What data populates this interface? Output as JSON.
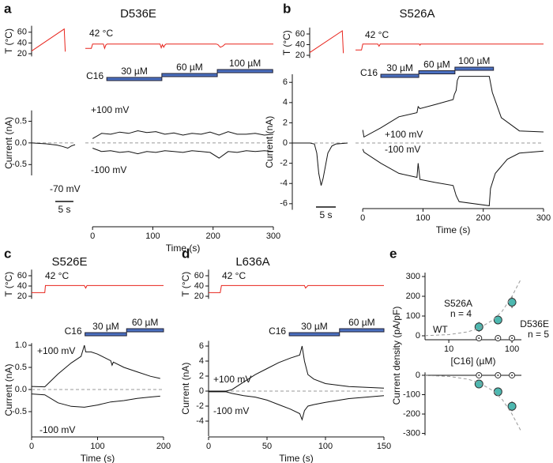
{
  "chart_data": [
    {
      "type": "line",
      "panel": "a",
      "ylabel": "T (°C)",
      "xlim": [
        0,
        20
      ],
      "ylim": [
        15,
        72
      ],
      "yticks": [
        20,
        40,
        60
      ],
      "series": [
        {
          "color": "#e8241c",
          "x": [
            0,
            15,
            15.5
          ],
          "values": [
            25,
            66,
            24
          ]
        }
      ]
    },
    {
      "type": "line",
      "title": "D536E",
      "annotations": [
        "42 °C"
      ],
      "xlim": [
        -12,
        300
      ],
      "ylim": [
        15,
        72
      ],
      "series": [
        {
          "color": "#e8241c",
          "x": [
            -12,
            -2,
            0,
            18,
            20,
            22,
            24,
            112,
            114,
            116,
            118,
            120,
            122,
            205,
            208,
            212,
            216,
            220,
            300
          ],
          "values": [
            30,
            30,
            38,
            38,
            30,
            36,
            38,
            38,
            31,
            37,
            32,
            36,
            38,
            38,
            37,
            32,
            34,
            38,
            38
          ]
        }
      ],
      "dose": {
        "label": "C16",
        "color": "#4a6fc0",
        "steps": [
          {
            "label": "30 µM",
            "x": [
              23.6,
              115
            ]
          },
          {
            "label": "60 µM",
            "x": [
              115,
              207
            ]
          },
          {
            "label": "100 µM",
            "x": [
              207,
              299
            ]
          }
        ]
      }
    },
    {
      "type": "line",
      "ylabel": "Current (nA)",
      "xlim": [
        0,
        12
      ],
      "ylim": [
        -0.75,
        0.75
      ],
      "yticks": [
        0.5,
        {
          "value": 0,
          "label": "0.0"
        },
        -0.5
      ],
      "zero_line": true,
      "annotations": [
        "-70 mV"
      ],
      "scalebar": {
        "label": "5 s",
        "value": 5
      },
      "series": [
        {
          "color": "#111",
          "x": [
            0,
            4,
            7,
            8.5,
            10,
            11,
            12
          ],
          "values": [
            0,
            -0.02,
            -0.05,
            -0.08,
            -0.12,
            -0.07,
            -0.04
          ]
        }
      ]
    },
    {
      "type": "line",
      "xlim": [
        -12,
        300
      ],
      "ylim": [
        -0.75,
        0.75
      ],
      "xticks": [
        0,
        100,
        200,
        300
      ],
      "xlabel": "Time (s)",
      "zero_line": true,
      "series": [
        {
          "name": "+100 mV",
          "color": "#111",
          "x": [
            0,
            15,
            30,
            45,
            60,
            75,
            90,
            105,
            120,
            135,
            150,
            165,
            180,
            195,
            210,
            225,
            240,
            255,
            270,
            285,
            300
          ],
          "values": [
            0.1,
            0.22,
            0.2,
            0.25,
            0.22,
            0.28,
            0.24,
            0.26,
            0.2,
            0.23,
            0.18,
            0.22,
            0.2,
            0.25,
            0.18,
            0.26,
            0.2,
            0.2,
            0.22,
            0.18,
            0.2
          ]
        },
        {
          "name": "-100 mV",
          "color": "#111",
          "x": [
            0,
            15,
            30,
            45,
            60,
            75,
            90,
            105,
            120,
            135,
            150,
            165,
            180,
            195,
            210,
            225,
            240,
            255,
            270,
            285,
            300
          ],
          "values": [
            -0.12,
            -0.2,
            -0.18,
            -0.22,
            -0.2,
            -0.25,
            -0.2,
            -0.22,
            -0.18,
            -0.2,
            -0.22,
            -0.18,
            -0.2,
            -0.22,
            -0.35,
            -0.2,
            -0.22,
            -0.18,
            -0.2,
            -0.18,
            -0.2
          ]
        }
      ]
    },
    {
      "type": "line",
      "panel": "b",
      "ylabel": "T (°C)",
      "xlim": [
        0,
        20
      ],
      "ylim": [
        15,
        72
      ],
      "yticks": [
        20,
        40,
        60
      ],
      "series": [
        {
          "color": "#e8241c",
          "x": [
            0,
            15,
            15.5
          ],
          "values": [
            25,
            66,
            24
          ]
        }
      ]
    },
    {
      "type": "line",
      "title": "S526A",
      "annotations": [
        "42 °C"
      ],
      "xlim": [
        -12,
        300
      ],
      "ylim": [
        15,
        72
      ],
      "series": [
        {
          "color": "#e8241c",
          "x": [
            -12,
            -2,
            0,
            25,
            27,
            29,
            94,
            95,
            96,
            300
          ],
          "values": [
            30,
            30,
            41,
            41,
            37,
            41,
            41,
            39,
            41,
            41
          ]
        }
      ],
      "dose": {
        "label": "C16",
        "color": "#4a6fc0",
        "steps": [
          {
            "label": "30 µM",
            "x": [
              30,
              93
            ]
          },
          {
            "label": "60 µM",
            "x": [
              93,
              153
            ]
          },
          {
            "label": "100 µM",
            "x": [
              153,
              217
            ]
          }
        ]
      }
    },
    {
      "type": "line",
      "ylabel": "Current (nA)",
      "xlim": [
        0,
        14
      ],
      "ylim": [
        -6.6,
        6.8
      ],
      "yticks": [
        6,
        4,
        2,
        0,
        -2,
        -4,
        -6
      ],
      "zero_line": true,
      "scalebar": {
        "label": "5 s",
        "value": 5
      },
      "series": [
        {
          "color": "#111",
          "x": [
            0,
            4.5,
            5.6,
            6.2,
            6.7,
            7.3,
            7.8,
            9,
            10,
            11,
            14
          ],
          "values": [
            0,
            0,
            -0.1,
            -1,
            -3,
            -4.2,
            -3.5,
            -1,
            -0.3,
            -0.1,
            0
          ]
        }
      ]
    },
    {
      "type": "line",
      "xlim": [
        -12,
        300
      ],
      "ylim": [
        -6.6,
        6.8
      ],
      "xticks": [
        0,
        100,
        200,
        300
      ],
      "xlabel": "Time (s)",
      "zero_line": true,
      "series": [
        {
          "name": "+100 mV",
          "color": "#111",
          "x": [
            0,
            2,
            30,
            60,
            90,
            92,
            95,
            120,
            150,
            152,
            155,
            157,
            160,
            210,
            215,
            230,
            260,
            300
          ],
          "values": [
            1.3,
            0.6,
            1.5,
            2.6,
            3,
            3.6,
            3.4,
            3.8,
            4.3,
            4.8,
            5.2,
            6.2,
            6.6,
            6.6,
            5,
            2.5,
            1.2,
            1.1
          ]
        },
        {
          "name": "-100 mV",
          "color": "#111",
          "x": [
            0,
            2,
            30,
            60,
            90,
            92,
            95,
            120,
            150,
            155,
            160,
            210,
            212,
            220,
            240,
            260,
            300
          ],
          "values": [
            -0.6,
            -0.9,
            -2,
            -3,
            -3.4,
            -2,
            -3.6,
            -3.9,
            -4.2,
            -5.2,
            -5.8,
            -6.2,
            -4.5,
            -3,
            -1.6,
            -1,
            -0.8
          ]
        }
      ]
    },
    {
      "type": "line",
      "panel": "c",
      "title": "S526E",
      "ylabel": "T (°C)",
      "annotations": [
        "42 °C"
      ],
      "xlim": [
        0,
        200
      ],
      "ylim": [
        15,
        72
      ],
      "yticks": [
        20,
        40,
        60
      ],
      "series": [
        {
          "color": "#e8241c",
          "x": [
            0,
            20,
            21,
            80,
            82,
            84,
            200
          ],
          "values": [
            27,
            27,
            41,
            41,
            36,
            41,
            41
          ]
        }
      ],
      "dose": {
        "label": "C16",
        "color": "#4a6fc0",
        "steps": [
          {
            "label": "30 µM",
            "x": [
              81,
              144
            ]
          },
          {
            "label": "60 µM",
            "x": [
              144,
              200
            ]
          }
        ]
      }
    },
    {
      "type": "line",
      "ylabel": "Current (nA)",
      "xlim": [
        0,
        200
      ],
      "ylim": [
        -1.07,
        1.05
      ],
      "yticks": [
        {
          "value": 1,
          "label": "1.0"
        },
        0.5,
        {
          "value": 0,
          "label": "0.0"
        },
        -0.5
      ],
      "xticks": [
        0,
        100,
        200
      ],
      "xlabel": "Time (s)",
      "zero_line": true,
      "series": [
        {
          "name": "+100 mV",
          "color": "#111",
          "x": [
            0,
            20,
            40,
            60,
            75,
            80,
            82,
            90,
            100,
            120,
            122,
            124,
            140,
            160,
            180,
            195
          ],
          "values": [
            0.07,
            0.06,
            0.35,
            0.6,
            0.75,
            1.0,
            0.85,
            0.85,
            0.8,
            0.65,
            0.55,
            0.62,
            0.5,
            0.4,
            0.3,
            0.25
          ]
        },
        {
          "name": "-100 mV",
          "color": "#111",
          "x": [
            0,
            20,
            40,
            60,
            80,
            100,
            120,
            140,
            160,
            180,
            195
          ],
          "values": [
            -0.1,
            -0.12,
            -0.3,
            -0.38,
            -0.4,
            -0.35,
            -0.28,
            -0.25,
            -0.2,
            -0.17,
            -0.15
          ]
        }
      ]
    },
    {
      "type": "line",
      "panel": "d",
      "title": "L636A",
      "ylabel": "T (°C)",
      "annotations": [
        "42 °C"
      ],
      "xlim": [
        0,
        150
      ],
      "ylim": [
        15,
        72
      ],
      "yticks": [
        20,
        40,
        60
      ],
      "series": [
        {
          "color": "#e8241c",
          "x": [
            0,
            10,
            11,
            82,
            83,
            85,
            150
          ],
          "values": [
            27,
            27,
            41,
            41,
            36,
            41,
            41
          ]
        }
      ],
      "dose": {
        "label": "C16",
        "color": "#4a6fc0",
        "steps": [
          {
            "label": "30 µM",
            "x": [
              69,
              112
            ]
          },
          {
            "label": "60 µM",
            "x": [
              112,
              150
            ]
          }
        ]
      }
    },
    {
      "type": "line",
      "ylabel": "Current (nA)",
      "xlim": [
        0,
        150
      ],
      "ylim": [
        -6,
        6.7
      ],
      "yticks": [
        6,
        4,
        2,
        0,
        -2,
        -4
      ],
      "xticks": [
        0,
        50,
        100,
        150
      ],
      "xlabel": "Time (s)",
      "zero_line": true,
      "series": [
        {
          "name": "+100 mV",
          "color": "#111",
          "x": [
            0,
            15,
            20,
            30,
            40,
            50,
            60,
            70,
            78,
            80,
            82,
            85,
            90,
            100,
            120,
            150
          ],
          "values": [
            0,
            0,
            0.2,
            1.2,
            2.2,
            3,
            3.8,
            4.4,
            4.8,
            6,
            4,
            2.2,
            1.6,
            1,
            0.6,
            0.4
          ]
        },
        {
          "name": "-100 mV",
          "color": "#111",
          "x": [
            0,
            15,
            20,
            30,
            40,
            50,
            60,
            70,
            78,
            80,
            82,
            85,
            90,
            100,
            120,
            150
          ],
          "values": [
            -0.1,
            -0.1,
            -0.3,
            -0.6,
            -0.8,
            -1.2,
            -1.8,
            -2.4,
            -3,
            -3.8,
            -2.6,
            -2,
            -1.8,
            -1.5,
            -1,
            -0.6
          ]
        }
      ]
    },
    {
      "type": "scatter",
      "panel": "e",
      "ylabel": "Current density (pA/pF)",
      "xlog": true,
      "xlim": [
        4.2,
        141
      ],
      "ylim": [
        -20,
        320
      ],
      "yticks": [
        0,
        100,
        200,
        300
      ],
      "xticks": [
        10,
        100
      ],
      "xlabel": "[C16] (µM)",
      "series": [
        {
          "name": "S526A",
          "n": "n = 4",
          "color": "#4db8b0",
          "marker": "filled",
          "x": [
            30,
            60,
            100
          ],
          "values": [
            45,
            80,
            170
          ],
          "errors": [
            25,
            22,
            30
          ]
        },
        {
          "name": "D536E",
          "n": "n = 5",
          "color": "#333333",
          "marker": "open",
          "x": [
            30,
            60,
            100
          ],
          "values": [
            -12,
            -12,
            -12
          ]
        },
        {
          "name": "WT",
          "color": "#999999",
          "dashed": true,
          "x": [
            4.2,
            10,
            20,
            30,
            50,
            70,
            100,
            140
          ],
          "values": [
            1,
            6,
            20,
            38,
            80,
            125,
            200,
            290
          ]
        }
      ]
    },
    {
      "type": "scatter",
      "xlog": true,
      "xlim": [
        4.2,
        141
      ],
      "ylim": [
        -310,
        15
      ],
      "yticks": [
        0,
        -100,
        -200,
        -300
      ],
      "series": [
        {
          "color": "#4db8b0",
          "marker": "filled",
          "x": [
            30,
            60,
            100
          ],
          "values": [
            -45,
            -85,
            -160
          ],
          "errors": [
            20,
            20,
            25
          ]
        },
        {
          "color": "#333333",
          "marker": "open",
          "x": [
            30,
            60,
            100
          ],
          "values": [
            0,
            0,
            0
          ]
        },
        {
          "color": "#999999",
          "dashed": true,
          "x": [
            4.2,
            10,
            20,
            30,
            50,
            70,
            100,
            140
          ],
          "values": [
            -1,
            -6,
            -20,
            -38,
            -80,
            -125,
            -200,
            -290
          ]
        }
      ]
    }
  ]
}
